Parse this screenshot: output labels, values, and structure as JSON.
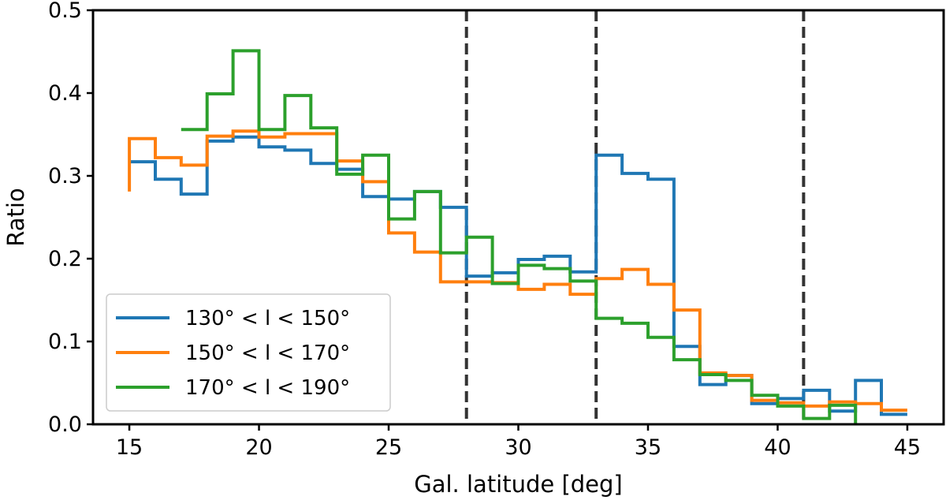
{
  "chart_data": {
    "type": "step",
    "title": "",
    "xlabel": "Gal. latitude [deg]",
    "ylabel": "Ratio",
    "xlim": [
      13.6,
      46.4
    ],
    "ylim": [
      0.0,
      0.5
    ],
    "xticks": [
      15,
      20,
      25,
      30,
      35,
      40,
      45
    ],
    "yticks": [
      0.0,
      0.1,
      0.2,
      0.3,
      0.4,
      0.5
    ],
    "xtick_labels": [
      "15",
      "20",
      "25",
      "30",
      "35",
      "40",
      "45"
    ],
    "ytick_labels": [
      "0.0",
      "0.1",
      "0.2",
      "0.3",
      "0.4",
      "0.5"
    ],
    "grid": false,
    "legend_position": "lower-left",
    "vlines": [
      {
        "x": 28,
        "style": "dashed",
        "color": "#333333"
      },
      {
        "x": 33,
        "style": "dashed",
        "color": "#333333"
      },
      {
        "x": 41,
        "style": "dashed",
        "color": "#333333"
      }
    ],
    "series": [
      {
        "name": "130° < l < 150°",
        "color": "#1f77b4",
        "x_start": 15,
        "values": [
          0.317,
          0.296,
          0.278,
          0.342,
          0.347,
          0.335,
          0.331,
          0.315,
          0.308,
          0.275,
          0.272,
          0.281,
          0.262,
          0.179,
          0.183,
          0.199,
          0.203,
          0.184,
          0.325,
          0.303,
          0.296,
          0.094,
          0.048,
          0.059,
          0.025,
          0.031,
          0.041,
          0.016,
          0.053,
          0.012
        ]
      },
      {
        "name": "150° < l < 170°",
        "color": "#ff7f0e",
        "x_start": 15,
        "values": [
          0.345,
          0.322,
          0.313,
          0.348,
          0.354,
          0.347,
          0.351,
          0.351,
          0.318,
          0.293,
          0.231,
          0.208,
          0.172,
          0.172,
          0.171,
          0.163,
          0.169,
          0.157,
          0.176,
          0.187,
          0.169,
          0.138,
          0.062,
          0.059,
          0.029,
          0.026,
          0.022,
          0.027,
          0.025,
          0.017
        ],
        "start_value": 0.281
      },
      {
        "name": "170° < l < 190°",
        "color": "#2ca02c",
        "x_start": 17,
        "values": [
          0.356,
          0.399,
          0.451,
          0.356,
          0.397,
          0.358,
          0.302,
          0.325,
          0.248,
          0.281,
          0.207,
          0.226,
          0.17,
          0.192,
          0.188,
          0.173,
          0.128,
          0.122,
          0.105,
          0.078,
          0.06,
          0.053,
          0.035,
          0.022,
          0.007,
          0.023
        ],
        "end_value": 0.0
      }
    ]
  }
}
